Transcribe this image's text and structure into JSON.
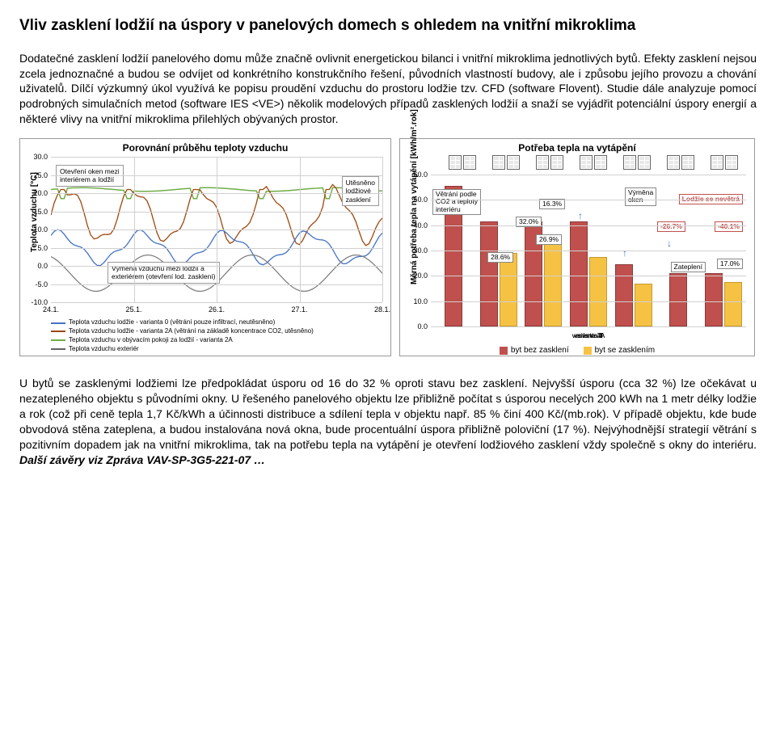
{
  "title": "Vliv zasklení lodžií na úspory v panelových domech s ohledem na vnitřní mikroklima",
  "para1": "Dodatečné zasklení lodžií panelového domu může značně ovlivnit energetickou bilanci i vnitřní mikroklima jednotlivých bytů. Efekty zasklení nejsou zcela jednoznačné a budou se odvíjet od konkrétního konstrukčního řešení, původních vlastností budovy, ale i způsobu jejího provozu a chování uživatelů. Dílčí výzkumný úkol využívá ke popisu proudění vzduchu do prostoru lodžie tzv. CFD (software Flovent). Studie dále analyzuje pomocí podrobných simulačních metod (software IES <VE>) několik modelových případů zasklených lodžií a snaží se vyjádřit potenciální úspory energií a některé vlivy na vnitřní mikroklima přilehlých obývaných prostor.",
  "para2_a": "U bytů se zasklenými lodžiemi lze předpokládat úsporu od 16 do 32 % oproti stavu bez zasklení. Nejvyšší úsporu (cca 32 %) lze očekávat u nezatepleného objektu s původními okny. U řešeného panelového objektu lze přibližně počítat s úsporou necelých 200 kWh na 1 metr délky lodžie a rok (což při ceně tepla 1,7 Kč/kWh a účinnosti distribuce a sdílení tepla v objektu např. 85 % činí 400 Kč/(mb.rok). V případě objektu, kde bude obvodová stěna zateplena, a budou instalována nová okna, bude procentuální úspora přibližně poloviční (17 %). Nejvýhodnější strategií větrání s pozitivním dopadem jak na vnitřní mikroklima, tak na potřebu tepla na vytápění je otevření lodžiového zasklení vždy společně s okny do interiéru. ",
  "para2_b": "Další závěry viz Zpráva VAV-SP-3G5-221-07 …",
  "chart_left": {
    "title": "Porovnání průběhu teploty vzduchu",
    "y_label": "Teplota vzduchu [°C]",
    "y_min": -10.0,
    "y_max": 30.0,
    "y_step": 5.0,
    "x_labels": [
      "24.1.",
      "25.1.",
      "26.1.",
      "27.1.",
      "28.1."
    ],
    "info_box1": "Otevření oken mezi\ninteriérem a lodžií",
    "info_box2": "Utěsněno\nlodžiové\nzasklení",
    "info_box3": "Výměna vzduchu mezi lodžií a\nexteriérem (otevření lod. zasklení)",
    "legend": [
      {
        "color": "#4472c4",
        "label": "Teplota vzduchu lodžie - varianta 0 (větrání pouze infiltrací, neutěsněno)"
      },
      {
        "color": "#9e480e",
        "label": "Teplota vzduchu lodžie - varianta 2A (větrání na základě koncentrace CO2, utěsněno)"
      },
      {
        "color": "#70ad47",
        "label": "Teplota vzduchu v obývacím pokoji za lodžií - varianta 2A"
      },
      {
        "color": "#636363",
        "label": "Teplota vzduchu exteriér"
      }
    ],
    "line_colors": {
      "green": "#70ad47",
      "brown": "#9e480e",
      "blue": "#4472c4",
      "grey": "#808080"
    }
  },
  "chart_right": {
    "title": "Potřeba tepla na vytápění",
    "y_label": "Měrná potřeba tepla na vytápění [kWh/m².rok]",
    "y_min": 0,
    "y_max": 60,
    "y_step": 10,
    "groups": [
      {
        "label": "varianta 0",
        "red": 55.0,
        "yellow": null
      },
      {
        "label": "varianta 1",
        "red": 41.0,
        "yellow": 28.6
      },
      {
        "label": "varianta 2",
        "red": 41.0,
        "yellow": 32.0
      },
      {
        "label": "varianta 2A",
        "red": 41.0,
        "yellow": 26.9
      },
      {
        "label": "varianta 3",
        "red": 24.0,
        "yellow": 16.3
      },
      {
        "label": "varianta 4",
        "red": 20.5,
        "yellow": null
      },
      {
        "label": "varianta 4A",
        "red": 20.5,
        "yellow": 17.0
      }
    ],
    "annotations": {
      "vetrani": "Větrání podle\nCO2 a teploty\ninteriéru",
      "vymena": "Výměna\noken",
      "nevetra": "Lodžie se nevětrá",
      "zatepleni": "Zateplení",
      "pct1": "16.3%",
      "pct2": "32.0%",
      "pct3": "26.9%",
      "pct4": "28.6%",
      "pct5": "-26.7%",
      "pct6": "-40.1%",
      "pct7": "17.0%"
    },
    "legend": [
      {
        "color": "#c0504d",
        "label": "byt bez zasklení"
      },
      {
        "color": "#f6c244",
        "label": "byt se zasklením"
      }
    ]
  }
}
